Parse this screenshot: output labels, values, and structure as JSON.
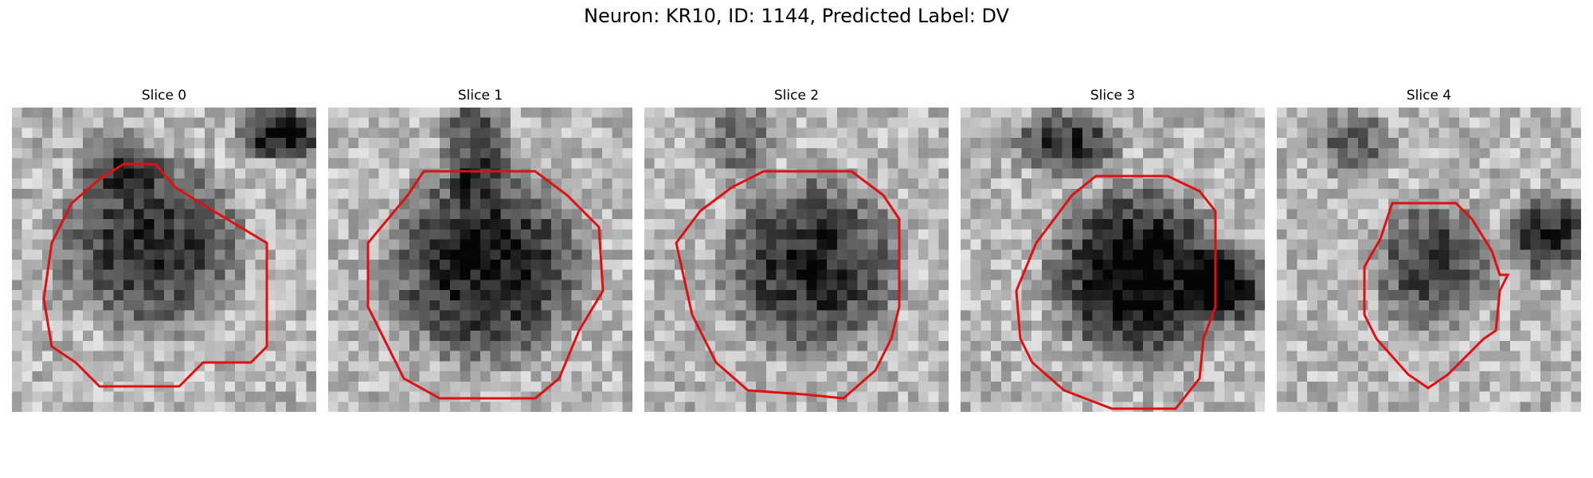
{
  "figure": {
    "title": "Neuron: KR10, ID: 1144, Predicted Label: DV",
    "contour_color": "#e01010",
    "colormap": "gray",
    "panels": [
      {
        "title": "Slice 0"
      },
      {
        "title": "Slice 1"
      },
      {
        "title": "Slice 2"
      },
      {
        "title": "Slice 3"
      },
      {
        "title": "Slice 4"
      }
    ]
  }
}
